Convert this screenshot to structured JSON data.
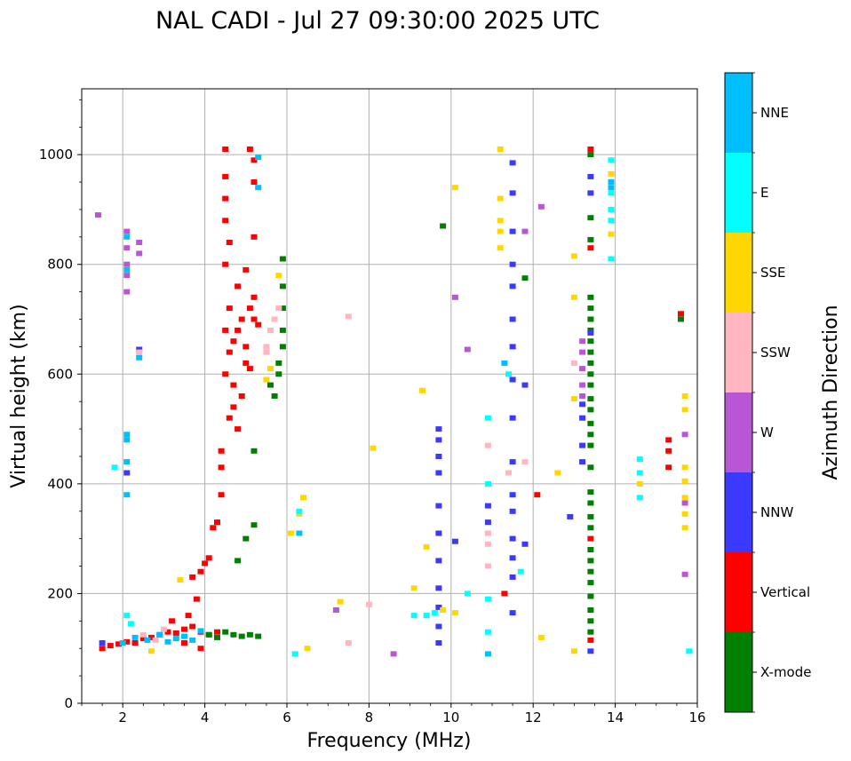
{
  "chart_data": {
    "type": "scatter",
    "title": "NAL CADI - Jul 27 09:30:00 2025 UTC",
    "xlabel": "Frequency (MHz)",
    "ylabel": "Virtual height (km)",
    "xlim": [
      1,
      16
    ],
    "ylim": [
      0,
      1120
    ],
    "x_ticks": [
      2,
      4,
      6,
      8,
      10,
      12,
      14,
      16
    ],
    "y_ticks": [
      0,
      200,
      400,
      600,
      800,
      1000
    ],
    "grid": true,
    "colorbar_label": "Azimuth Direction",
    "categories": [
      "X-mode",
      "Vertical",
      "NNW",
      "W",
      "SSW",
      "SSE",
      "E",
      "NNE"
    ],
    "category_colors": {
      "X-mode": "#008000",
      "Vertical": "#ff0000",
      "NNW": "#3a3aff",
      "W": "#b857d6",
      "SSW": "#ffb6c1",
      "SSE": "#ffd700",
      "E": "#00ffff",
      "NNE": "#00bfff"
    },
    "series": [
      {
        "name": "Vertical",
        "points": [
          [
            1.5,
            100
          ],
          [
            1.7,
            105
          ],
          [
            1.9,
            108
          ],
          [
            2.1,
            112
          ],
          [
            2.3,
            110
          ],
          [
            2.5,
            118
          ],
          [
            2.7,
            120
          ],
          [
            2.9,
            125
          ],
          [
            3.1,
            130
          ],
          [
            3.3,
            128
          ],
          [
            3.5,
            135
          ],
          [
            3.7,
            140
          ],
          [
            3.9,
            130
          ],
          [
            4.1,
            125
          ],
          [
            4.3,
            130
          ],
          [
            3.2,
            150
          ],
          [
            3.6,
            160
          ],
          [
            3.8,
            190
          ],
          [
            3.5,
            110
          ],
          [
            3.9,
            100
          ],
          [
            3.7,
            230
          ],
          [
            3.9,
            240
          ],
          [
            4.0,
            255
          ],
          [
            4.1,
            265
          ],
          [
            4.2,
            320
          ],
          [
            4.3,
            330
          ],
          [
            4.4,
            380
          ],
          [
            4.4,
            430
          ],
          [
            4.4,
            460
          ],
          [
            4.6,
            520
          ],
          [
            4.7,
            540
          ],
          [
            4.8,
            500
          ],
          [
            4.5,
            600
          ],
          [
            4.6,
            640
          ],
          [
            4.7,
            660
          ],
          [
            4.8,
            680
          ],
          [
            4.9,
            700
          ],
          [
            5.0,
            650
          ],
          [
            5.1,
            610
          ],
          [
            5.2,
            700
          ],
          [
            4.6,
            720
          ],
          [
            4.8,
            760
          ],
          [
            5.0,
            790
          ],
          [
            5.2,
            740
          ],
          [
            4.5,
            800
          ],
          [
            4.6,
            840
          ],
          [
            4.5,
            880
          ],
          [
            4.5,
            920
          ],
          [
            4.5,
            960
          ],
          [
            4.5,
            1010
          ],
          [
            5.1,
            1010
          ],
          [
            5.2,
            990
          ],
          [
            5.2,
            950
          ],
          [
            5.2,
            850
          ],
          [
            5.0,
            620
          ],
          [
            4.7,
            580
          ],
          [
            4.9,
            560
          ],
          [
            5.3,
            690
          ],
          [
            5.1,
            720
          ],
          [
            4.5,
            680
          ],
          [
            12.1,
            380
          ],
          [
            15.3,
            480
          ],
          [
            15.3,
            460
          ],
          [
            15.3,
            430
          ],
          [
            15.6,
            710
          ],
          [
            13.4,
            115
          ],
          [
            13.4,
            300
          ],
          [
            13.4,
            830
          ],
          [
            13.4,
            1010
          ],
          [
            11.3,
            200
          ]
        ]
      },
      {
        "name": "X-mode",
        "points": [
          [
            4.1,
            125
          ],
          [
            4.3,
            120
          ],
          [
            4.5,
            130
          ],
          [
            4.7,
            125
          ],
          [
            4.9,
            122
          ],
          [
            5.1,
            125
          ],
          [
            5.3,
            122
          ],
          [
            5.7,
            560
          ],
          [
            5.6,
            580
          ],
          [
            5.8,
            600
          ],
          [
            5.8,
            620
          ],
          [
            5.9,
            650
          ],
          [
            5.9,
            680
          ],
          [
            5.9,
            720
          ],
          [
            5.9,
            760
          ],
          [
            5.9,
            810
          ],
          [
            5.2,
            460
          ],
          [
            4.8,
            260
          ],
          [
            5.0,
            300
          ],
          [
            5.2,
            325
          ],
          [
            15.6,
            700
          ],
          [
            13.4,
            130
          ],
          [
            13.4,
            150
          ],
          [
            13.4,
            170
          ],
          [
            13.4,
            195
          ],
          [
            13.4,
            220
          ],
          [
            13.4,
            240
          ],
          [
            13.4,
            260
          ],
          [
            13.4,
            280
          ],
          [
            13.4,
            320
          ],
          [
            13.4,
            340
          ],
          [
            13.4,
            365
          ],
          [
            13.4,
            385
          ],
          [
            13.4,
            430
          ],
          [
            13.4,
            470
          ],
          [
            13.4,
            490
          ],
          [
            13.4,
            510
          ],
          [
            13.4,
            535
          ],
          [
            13.4,
            555
          ],
          [
            13.4,
            580
          ],
          [
            13.4,
            600
          ],
          [
            13.4,
            620
          ],
          [
            13.4,
            640
          ],
          [
            13.4,
            660
          ],
          [
            13.4,
            680
          ],
          [
            13.4,
            700
          ],
          [
            13.4,
            720
          ],
          [
            13.4,
            740
          ],
          [
            13.4,
            885
          ],
          [
            13.4,
            845
          ],
          [
            13.4,
            1000
          ],
          [
            11.8,
            775
          ],
          [
            9.8,
            870
          ]
        ]
      },
      {
        "name": "NNW",
        "points": [
          [
            1.5,
            110
          ],
          [
            2.1,
            420
          ],
          [
            2.4,
            645
          ],
          [
            9.7,
            110
          ],
          [
            9.7,
            140
          ],
          [
            9.7,
            175
          ],
          [
            9.7,
            210
          ],
          [
            9.7,
            260
          ],
          [
            9.7,
            310
          ],
          [
            9.7,
            360
          ],
          [
            9.7,
            420
          ],
          [
            9.7,
            450
          ],
          [
            9.7,
            480
          ],
          [
            9.7,
            500
          ],
          [
            11.5,
            165
          ],
          [
            11.5,
            230
          ],
          [
            11.5,
            265
          ],
          [
            11.5,
            300
          ],
          [
            11.5,
            350
          ],
          [
            11.5,
            380
          ],
          [
            11.5,
            440
          ],
          [
            11.5,
            520
          ],
          [
            11.5,
            590
          ],
          [
            11.5,
            650
          ],
          [
            11.5,
            700
          ],
          [
            11.5,
            760
          ],
          [
            11.5,
            800
          ],
          [
            11.5,
            860
          ],
          [
            11.5,
            930
          ],
          [
            11.5,
            985
          ],
          [
            13.2,
            440
          ],
          [
            13.2,
            470
          ],
          [
            13.2,
            520
          ],
          [
            13.2,
            545
          ],
          [
            13.4,
            95
          ],
          [
            13.4,
            675
          ],
          [
            13.4,
            930
          ],
          [
            13.4,
            960
          ],
          [
            12.9,
            340
          ],
          [
            10.1,
            295
          ],
          [
            11.8,
            290
          ],
          [
            10.9,
            330
          ],
          [
            10.9,
            360
          ],
          [
            11.8,
            580
          ]
        ]
      },
      {
        "name": "W",
        "points": [
          [
            2.1,
            750
          ],
          [
            2.1,
            780
          ],
          [
            2.1,
            800
          ],
          [
            2.1,
            830
          ],
          [
            2.1,
            860
          ],
          [
            2.4,
            820
          ],
          [
            2.4,
            840
          ],
          [
            13.2,
            560
          ],
          [
            13.2,
            580
          ],
          [
            13.2,
            610
          ],
          [
            13.2,
            640
          ],
          [
            13.2,
            660
          ],
          [
            15.7,
            235
          ],
          [
            15.7,
            365
          ],
          [
            15.7,
            490
          ],
          [
            12.2,
            905
          ],
          [
            10.1,
            740
          ],
          [
            10.4,
            645
          ],
          [
            11.8,
            860
          ],
          [
            8.6,
            90
          ],
          [
            7.2,
            170
          ],
          [
            1.4,
            890
          ]
        ]
      },
      {
        "name": "SSW",
        "points": [
          [
            5.5,
            650
          ],
          [
            5.6,
            680
          ],
          [
            5.7,
            700
          ],
          [
            5.8,
            720
          ],
          [
            5.5,
            640
          ],
          [
            2.5,
            125
          ],
          [
            2.8,
            115
          ],
          [
            3.0,
            135
          ],
          [
            7.5,
            705
          ],
          [
            7.5,
            110
          ],
          [
            8.0,
            180
          ],
          [
            10.9,
            250
          ],
          [
            10.9,
            290
          ],
          [
            10.9,
            310
          ],
          [
            11.8,
            440
          ],
          [
            13.0,
            620
          ],
          [
            11.4,
            420
          ],
          [
            2.4,
            640
          ],
          [
            10.9,
            470
          ]
        ]
      },
      {
        "name": "SSE",
        "points": [
          [
            5.6,
            610
          ],
          [
            5.5,
            590
          ],
          [
            5.8,
            780
          ],
          [
            6.1,
            310
          ],
          [
            6.3,
            345
          ],
          [
            6.4,
            375
          ],
          [
            6.5,
            100
          ],
          [
            7.3,
            185
          ],
          [
            9.1,
            210
          ],
          [
            9.4,
            285
          ],
          [
            9.8,
            170
          ],
          [
            10.1,
            165
          ],
          [
            10.1,
            940
          ],
          [
            11.2,
            1010
          ],
          [
            11.2,
            920
          ],
          [
            11.2,
            880
          ],
          [
            11.2,
            860
          ],
          [
            11.2,
            830
          ],
          [
            12.2,
            120
          ],
          [
            13.0,
            95
          ],
          [
            13.0,
            555
          ],
          [
            13.0,
            740
          ],
          [
            13.0,
            815
          ],
          [
            13.9,
            855
          ],
          [
            13.9,
            965
          ],
          [
            14.6,
            400
          ],
          [
            15.7,
            560
          ],
          [
            15.7,
            535
          ],
          [
            15.7,
            430
          ],
          [
            15.7,
            405
          ],
          [
            15.7,
            375
          ],
          [
            15.7,
            345
          ],
          [
            15.7,
            320
          ],
          [
            9.3,
            570
          ],
          [
            8.1,
            465
          ],
          [
            2.7,
            95
          ],
          [
            3.4,
            225
          ],
          [
            12.6,
            420
          ]
        ]
      },
      {
        "name": "E",
        "points": [
          [
            1.8,
            430
          ],
          [
            2.1,
            160
          ],
          [
            2.2,
            145
          ],
          [
            6.2,
            90
          ],
          [
            9.1,
            160
          ],
          [
            9.4,
            160
          ],
          [
            9.6,
            165
          ],
          [
            10.4,
            200
          ],
          [
            10.9,
            130
          ],
          [
            10.9,
            190
          ],
          [
            10.9,
            400
          ],
          [
            10.9,
            520
          ],
          [
            11.7,
            240
          ],
          [
            13.9,
            810
          ],
          [
            13.9,
            880
          ],
          [
            13.9,
            900
          ],
          [
            13.9,
            930
          ],
          [
            13.9,
            990
          ],
          [
            14.6,
            375
          ],
          [
            14.6,
            420
          ],
          [
            14.6,
            445
          ],
          [
            15.8,
            95
          ],
          [
            6.3,
            350
          ],
          [
            11.4,
            600
          ]
        ]
      },
      {
        "name": "NNE",
        "points": [
          [
            2.0,
            110
          ],
          [
            2.3,
            120
          ],
          [
            2.6,
            115
          ],
          [
            2.9,
            125
          ],
          [
            3.1,
            112
          ],
          [
            3.3,
            118
          ],
          [
            3.5,
            122
          ],
          [
            3.7,
            115
          ],
          [
            3.9,
            132
          ],
          [
            2.1,
            380
          ],
          [
            2.1,
            440
          ],
          [
            2.1,
            480
          ],
          [
            2.1,
            490
          ],
          [
            2.1,
            790
          ],
          [
            2.1,
            850
          ],
          [
            2.4,
            630
          ],
          [
            5.3,
            940
          ],
          [
            5.3,
            995
          ],
          [
            6.3,
            310
          ],
          [
            10.9,
            90
          ],
          [
            11.3,
            620
          ],
          [
            13.9,
            940
          ],
          [
            13.9,
            950
          ]
        ]
      }
    ]
  }
}
